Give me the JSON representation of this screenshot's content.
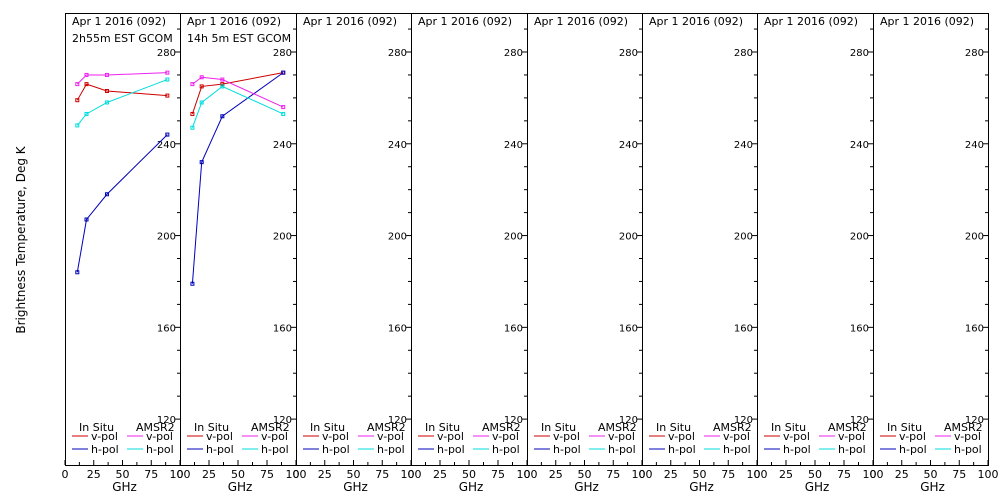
{
  "figure": {
    "ylabel": "Brightness Temperature, Deg K",
    "xlabel": "GHz",
    "xticks": [
      0,
      25,
      50,
      75,
      100
    ],
    "yticks": [
      120,
      160,
      200,
      240,
      280
    ],
    "xlim": [
      0,
      100
    ],
    "ylim": [
      100,
      297
    ],
    "colors": {
      "insitu_v": "#cc0000",
      "insitu_h": "#0000bb",
      "amsr2_v": "#ee22ee",
      "amsr2_h": "#00dddd"
    },
    "legend": {
      "in_situ": "In Situ",
      "amsr2": "AMSR2",
      "vpol": "v-pol",
      "hpol": "h-pol"
    }
  },
  "chart_data": [
    {
      "type": "line",
      "title": "Apr 1 2016 (092)",
      "subtitle": "2h55m EST GCOM",
      "series": [
        {
          "name": "In Situ v-pol",
          "x": [
            10.7,
            18.7,
            36.5,
            89.0
          ],
          "y": [
            259,
            266,
            263,
            261
          ]
        },
        {
          "name": "In Situ h-pol",
          "x": [
            10.7,
            18.7,
            36.5,
            89.0
          ],
          "y": [
            184,
            207,
            218,
            244
          ]
        },
        {
          "name": "AMSR2 v-pol",
          "x": [
            10.7,
            18.7,
            36.5,
            89.0
          ],
          "y": [
            266,
            270,
            270,
            271
          ]
        },
        {
          "name": "AMSR2 h-pol",
          "x": [
            10.7,
            18.7,
            36.5,
            89.0
          ],
          "y": [
            248,
            253,
            258,
            268
          ]
        }
      ]
    },
    {
      "type": "line",
      "title": "Apr 1 2016 (092)",
      "subtitle": "14h 5m EST GCOM",
      "series": [
        {
          "name": "In Situ v-pol",
          "x": [
            10.7,
            18.7,
            36.5,
            89.0
          ],
          "y": [
            253,
            265,
            266,
            271
          ]
        },
        {
          "name": "In Situ h-pol",
          "x": [
            10.7,
            18.7,
            36.5,
            89.0
          ],
          "y": [
            179,
            232,
            252,
            271
          ]
        },
        {
          "name": "AMSR2 v-pol",
          "x": [
            10.7,
            18.7,
            36.5,
            89.0
          ],
          "y": [
            266,
            269,
            268,
            256
          ]
        },
        {
          "name": "AMSR2 h-pol",
          "x": [
            10.7,
            18.7,
            36.5,
            89.0
          ],
          "y": [
            247,
            258,
            265,
            253
          ]
        }
      ]
    },
    {
      "type": "line",
      "title": "Apr 1 2016 (092)",
      "subtitle": "",
      "series": []
    },
    {
      "type": "line",
      "title": "Apr 1 2016 (092)",
      "subtitle": "",
      "series": []
    },
    {
      "type": "line",
      "title": "Apr 1 2016 (092)",
      "subtitle": "",
      "series": []
    },
    {
      "type": "line",
      "title": "Apr 1 2016 (092)",
      "subtitle": "",
      "series": []
    },
    {
      "type": "line",
      "title": "Apr 1 2016 (092)",
      "subtitle": "",
      "series": []
    },
    {
      "type": "line",
      "title": "Apr 1 2016 (092)",
      "subtitle": "",
      "series": []
    }
  ]
}
